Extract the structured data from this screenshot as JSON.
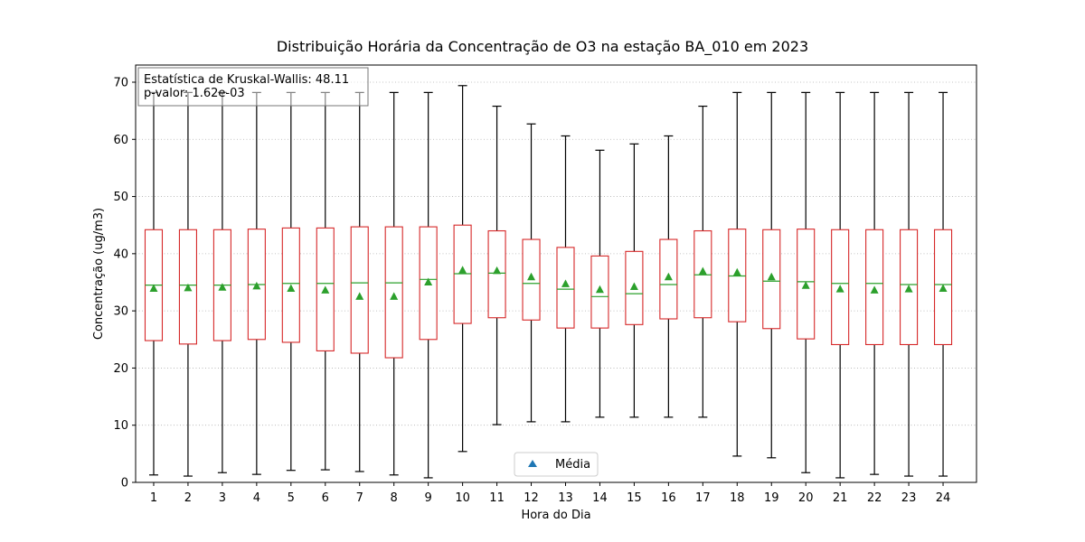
{
  "chart_data": {
    "type": "box",
    "title": "Distribuição Horária da Concentração de O3 na estação BA_010 em 2023",
    "xlabel": "Hora do Dia",
    "ylabel": "Concentração (ug/m3)",
    "ylim": [
      0,
      73
    ],
    "yticks": [
      0,
      10,
      20,
      30,
      40,
      50,
      60,
      70
    ],
    "grid": "y",
    "categories": [
      "1",
      "2",
      "3",
      "4",
      "5",
      "6",
      "7",
      "8",
      "9",
      "10",
      "11",
      "12",
      "13",
      "14",
      "15",
      "16",
      "17",
      "18",
      "19",
      "20",
      "21",
      "22",
      "23",
      "24"
    ],
    "boxes": [
      {
        "whislo": 1.3,
        "q1": 24.8,
        "med": 34.5,
        "q3": 44.2,
        "whishi": 68.2,
        "mean": 33.9
      },
      {
        "whislo": 1.1,
        "q1": 24.2,
        "med": 34.5,
        "q3": 44.2,
        "whishi": 68.2,
        "mean": 34.0
      },
      {
        "whislo": 1.7,
        "q1": 24.8,
        "med": 34.5,
        "q3": 44.2,
        "whishi": 68.2,
        "mean": 34.1
      },
      {
        "whislo": 1.4,
        "q1": 25.0,
        "med": 34.6,
        "q3": 44.3,
        "whishi": 68.2,
        "mean": 34.3
      },
      {
        "whislo": 2.1,
        "q1": 24.5,
        "med": 34.8,
        "q3": 44.5,
        "whishi": 68.2,
        "mean": 33.9
      },
      {
        "whislo": 2.2,
        "q1": 23.0,
        "med": 34.8,
        "q3": 44.5,
        "whishi": 68.2,
        "mean": 33.6
      },
      {
        "whislo": 1.9,
        "q1": 22.6,
        "med": 34.9,
        "q3": 44.7,
        "whishi": 68.2,
        "mean": 32.5
      },
      {
        "whislo": 1.3,
        "q1": 21.8,
        "med": 34.9,
        "q3": 44.7,
        "whishi": 68.2,
        "mean": 32.5
      },
      {
        "whislo": 0.8,
        "q1": 25.0,
        "med": 35.5,
        "q3": 44.7,
        "whishi": 68.2,
        "mean": 35.0
      },
      {
        "whislo": 5.4,
        "q1": 27.8,
        "med": 36.5,
        "q3": 45.0,
        "whishi": 69.4,
        "mean": 37.1
      },
      {
        "whislo": 10.1,
        "q1": 28.8,
        "med": 36.6,
        "q3": 44.0,
        "whishi": 65.8,
        "mean": 37.0
      },
      {
        "whislo": 10.6,
        "q1": 28.4,
        "med": 34.8,
        "q3": 42.5,
        "whishi": 62.7,
        "mean": 35.9
      },
      {
        "whislo": 10.6,
        "q1": 27.0,
        "med": 33.8,
        "q3": 41.1,
        "whishi": 60.6,
        "mean": 34.7
      },
      {
        "whislo": 11.4,
        "q1": 27.0,
        "med": 32.5,
        "q3": 39.6,
        "whishi": 58.1,
        "mean": 33.7
      },
      {
        "whislo": 11.4,
        "q1": 27.6,
        "med": 33.0,
        "q3": 40.4,
        "whishi": 59.2,
        "mean": 34.2
      },
      {
        "whislo": 11.4,
        "q1": 28.6,
        "med": 34.6,
        "q3": 42.5,
        "whishi": 60.6,
        "mean": 35.9
      },
      {
        "whislo": 11.4,
        "q1": 28.8,
        "med": 36.3,
        "q3": 44.0,
        "whishi": 65.8,
        "mean": 36.9
      },
      {
        "whislo": 4.6,
        "q1": 28.1,
        "med": 36.1,
        "q3": 44.3,
        "whishi": 68.2,
        "mean": 36.7
      },
      {
        "whislo": 4.3,
        "q1": 26.9,
        "med": 35.2,
        "q3": 44.2,
        "whishi": 68.2,
        "mean": 35.9
      },
      {
        "whislo": 1.7,
        "q1": 25.1,
        "med": 35.1,
        "q3": 44.3,
        "whishi": 68.2,
        "mean": 34.4
      },
      {
        "whislo": 0.8,
        "q1": 24.1,
        "med": 34.8,
        "q3": 44.2,
        "whishi": 68.2,
        "mean": 33.8
      },
      {
        "whislo": 1.4,
        "q1": 24.1,
        "med": 34.8,
        "q3": 44.2,
        "whishi": 68.2,
        "mean": 33.6
      },
      {
        "whislo": 1.1,
        "q1": 24.1,
        "med": 34.6,
        "q3": 44.2,
        "whishi": 68.2,
        "mean": 33.8
      },
      {
        "whislo": 1.1,
        "q1": 24.1,
        "med": 34.6,
        "q3": 44.2,
        "whishi": 68.2,
        "mean": 33.9
      }
    ],
    "annotation": {
      "line1": "Estatística de Kruskal-Wallis: 48.11",
      "line2": "p-valor: 1.62e-03"
    },
    "legend": {
      "entries": [
        "Média"
      ],
      "position": "lower-center"
    },
    "colors": {
      "box": "#d62728",
      "median": "#2ca02c",
      "mean_marker": "#2ca02c",
      "legend_marker": "#1f77b4",
      "whisker": "#000000",
      "grid": "#b0b0b0"
    }
  }
}
